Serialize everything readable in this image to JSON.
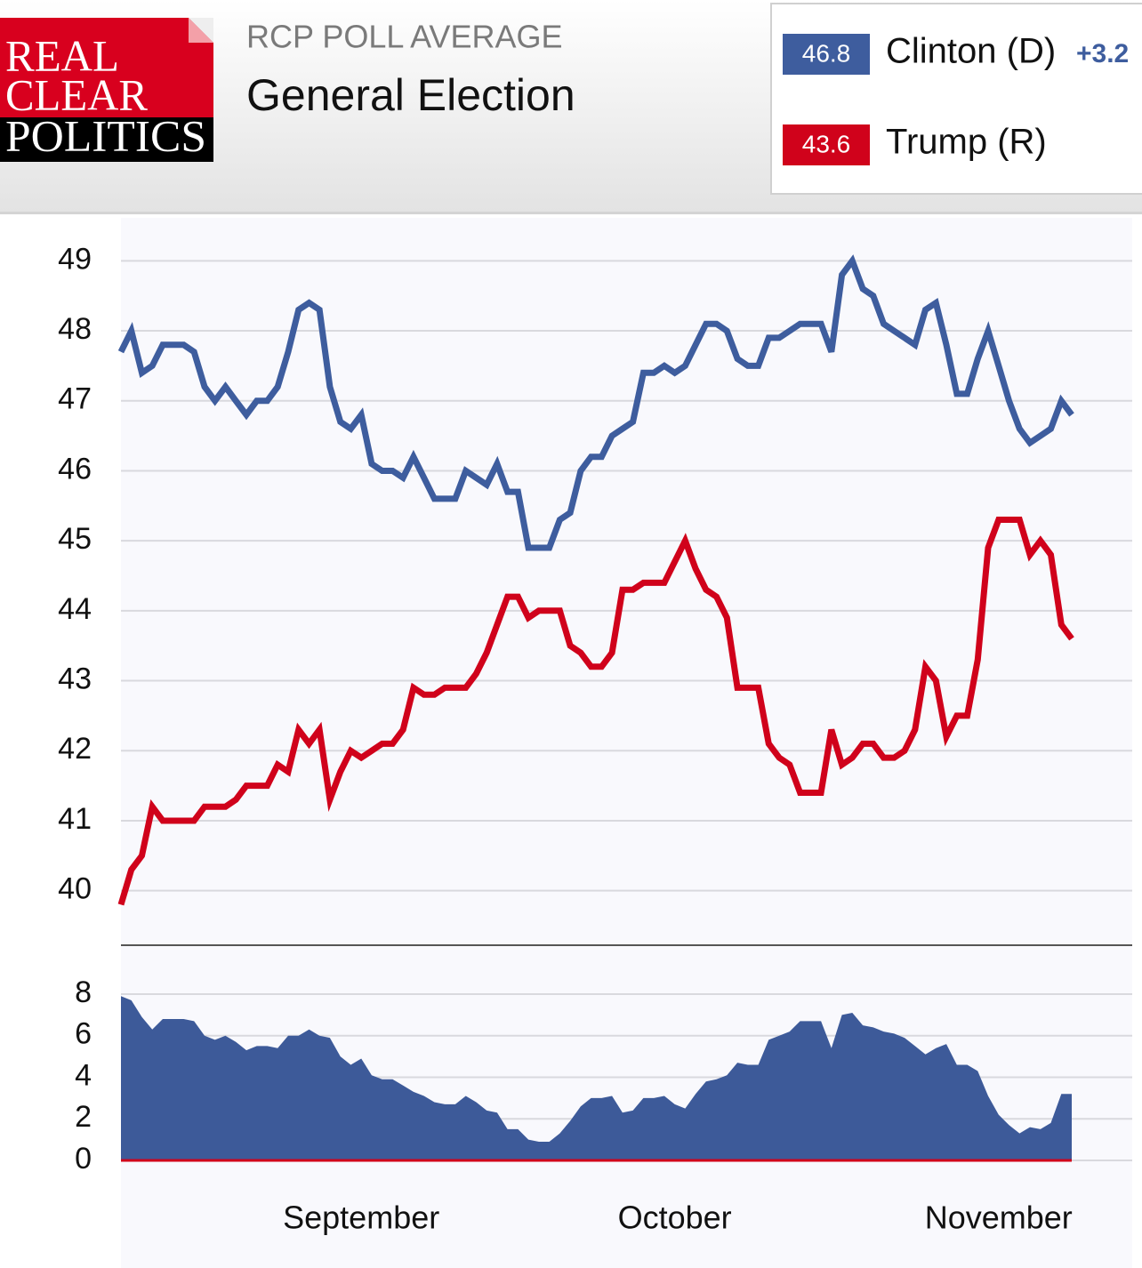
{
  "logo": {
    "lines": [
      "REAL",
      "CLEAR",
      "POLITICS"
    ]
  },
  "header": {
    "kicker": "RCP POLL AVERAGE",
    "title": "General Election",
    "spread_label": "+3.2"
  },
  "chart_data": [
    {
      "type": "line",
      "ylim": [
        39.5,
        49.5
      ],
      "yticks": [
        40,
        41,
        42,
        43,
        44,
        45,
        46,
        47,
        48,
        49
      ],
      "grid": true,
      "series": [
        {
          "name": "Clinton (D)",
          "color": "#3e5d9e",
          "values": [
            47.7,
            48.0,
            47.4,
            47.5,
            47.8,
            47.8,
            47.8,
            47.7,
            47.2,
            47.0,
            47.2,
            47.0,
            46.8,
            47.0,
            47.0,
            47.2,
            47.7,
            48.3,
            48.4,
            48.3,
            47.2,
            46.7,
            46.6,
            46.8,
            46.1,
            46.0,
            46.0,
            45.9,
            46.2,
            45.9,
            45.6,
            45.6,
            45.6,
            46.0,
            45.9,
            45.8,
            46.1,
            45.7,
            45.7,
            44.9,
            44.9,
            44.9,
            45.3,
            45.4,
            46.0,
            46.2,
            46.2,
            46.5,
            46.6,
            46.7,
            47.4,
            47.4,
            47.5,
            47.4,
            47.5,
            47.8,
            48.1,
            48.1,
            48.0,
            47.6,
            47.5,
            47.5,
            47.9,
            47.9,
            48.0,
            48.1,
            48.1,
            48.1,
            47.7,
            48.8,
            49.0,
            48.6,
            48.5,
            48.1,
            48.0,
            47.9,
            47.8,
            48.3,
            48.4,
            47.8,
            47.1,
            47.1,
            47.6,
            48.0,
            47.5,
            47.0,
            46.6,
            46.4,
            46.5,
            46.6,
            47.0,
            46.8
          ]
        },
        {
          "name": "Trump (R)",
          "color": "#d0021b",
          "values": [
            39.8,
            40.3,
            40.5,
            41.2,
            41.0,
            41.0,
            41.0,
            41.0,
            41.2,
            41.2,
            41.2,
            41.3,
            41.5,
            41.5,
            41.5,
            41.8,
            41.7,
            42.3,
            42.1,
            42.3,
            41.3,
            41.7,
            42.0,
            41.9,
            42.0,
            42.1,
            42.1,
            42.3,
            42.9,
            42.8,
            42.8,
            42.9,
            42.9,
            42.9,
            43.1,
            43.4,
            43.8,
            44.2,
            44.2,
            43.9,
            44.0,
            44.0,
            44.0,
            43.5,
            43.4,
            43.2,
            43.2,
            43.4,
            44.3,
            44.3,
            44.4,
            44.4,
            44.4,
            44.7,
            45.0,
            44.6,
            44.3,
            44.2,
            43.9,
            42.9,
            42.9,
            42.9,
            42.1,
            41.9,
            41.8,
            41.4,
            41.4,
            41.4,
            42.3,
            41.8,
            41.9,
            42.1,
            42.1,
            41.9,
            41.9,
            42.0,
            42.3,
            43.2,
            43.0,
            42.2,
            42.5,
            42.5,
            43.3,
            44.9,
            45.3,
            45.3,
            45.3,
            44.8,
            45.0,
            44.8,
            43.8,
            43.6
          ]
        }
      ]
    },
    {
      "type": "area",
      "color": "#3d5a99",
      "baseline_color": "#d0021b",
      "ylim": [
        0,
        8
      ],
      "yticks": [
        0,
        2,
        4,
        6,
        8
      ],
      "grid": true,
      "categories": [
        null,
        null,
        null,
        null,
        null,
        null,
        null,
        null,
        null,
        null,
        null,
        null,
        null,
        null,
        null,
        null,
        null,
        null,
        null,
        null,
        null,
        null,
        null,
        "September",
        null,
        null,
        null,
        null,
        null,
        null,
        null,
        null,
        null,
        null,
        null,
        null,
        null,
        null,
        null,
        null,
        null,
        null,
        null,
        null,
        null,
        null,
        null,
        null,
        null,
        null,
        null,
        null,
        null,
        "October",
        null,
        null,
        null,
        null,
        null,
        null,
        null,
        null,
        null,
        null,
        null,
        null,
        null,
        null,
        null,
        null,
        null,
        null,
        null,
        null,
        null,
        null,
        null,
        null,
        null,
        null,
        null,
        null,
        null,
        null,
        "November",
        null,
        null,
        null,
        null,
        null,
        null,
        null
      ],
      "values": [
        7.9,
        7.7,
        6.9,
        6.3,
        6.8,
        6.8,
        6.8,
        6.7,
        6.0,
        5.8,
        6.0,
        5.7,
        5.3,
        5.5,
        5.5,
        5.4,
        6.0,
        6.0,
        6.3,
        6.0,
        5.9,
        5.0,
        4.6,
        4.9,
        4.1,
        3.9,
        3.9,
        3.6,
        3.3,
        3.1,
        2.8,
        2.7,
        2.7,
        3.1,
        2.8,
        2.4,
        2.3,
        1.5,
        1.5,
        1.0,
        0.9,
        0.9,
        1.3,
        1.9,
        2.6,
        3.0,
        3.0,
        3.1,
        2.3,
        2.4,
        3.0,
        3.0,
        3.1,
        2.7,
        2.5,
        3.2,
        3.8,
        3.9,
        4.1,
        4.7,
        4.6,
        4.6,
        5.8,
        6.0,
        6.2,
        6.7,
        6.7,
        6.7,
        5.4,
        7.0,
        7.1,
        6.5,
        6.4,
        6.2,
        6.1,
        5.9,
        5.5,
        5.1,
        5.4,
        5.6,
        4.6,
        4.6,
        4.3,
        3.1,
        2.2,
        1.7,
        1.3,
        1.6,
        1.5,
        1.8,
        3.2,
        3.2
      ]
    }
  ]
}
